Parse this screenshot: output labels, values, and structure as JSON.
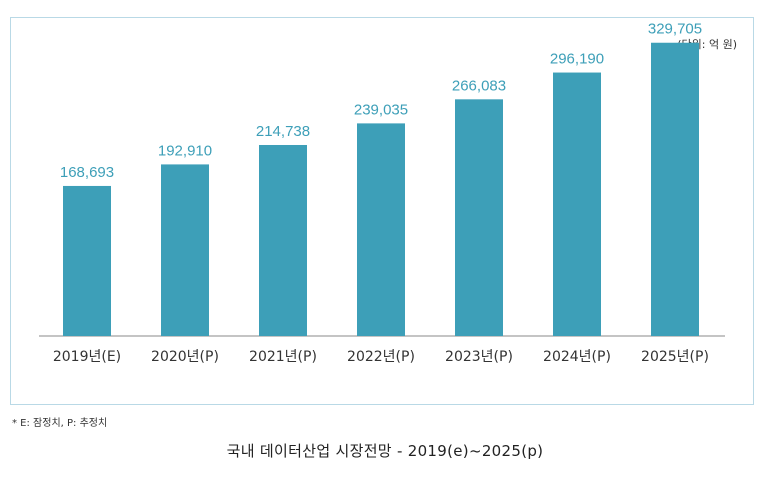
{
  "chart_data": {
    "type": "bar",
    "unit_note": "(단위: 억 원)",
    "categories": [
      "2019년(E)",
      "2020년(P)",
      "2021년(P)",
      "2022년(P)",
      "2023년(P)",
      "2024년(P)",
      "2025년(P)"
    ],
    "values": [
      168693,
      192910,
      214738,
      239035,
      266083,
      296190,
      329705
    ],
    "value_labels": [
      "168,693",
      "192,910",
      "214,738",
      "239,035",
      "266,083",
      "296,190",
      "329,705"
    ],
    "ylim": [
      0,
      380000
    ],
    "grid": false,
    "legend": "none",
    "bar_color": "#3d9fb8",
    "value_label_color": "#3d9fb8"
  },
  "footnote": "* E: 잠정치, P: 추정치",
  "caption": "국내 데이터산업 시장전망 - 2019(e)~2025(p)",
  "colors": {
    "frame_border": "#b9d9e6",
    "axis": "#888888",
    "tick_label": "#333333"
  }
}
